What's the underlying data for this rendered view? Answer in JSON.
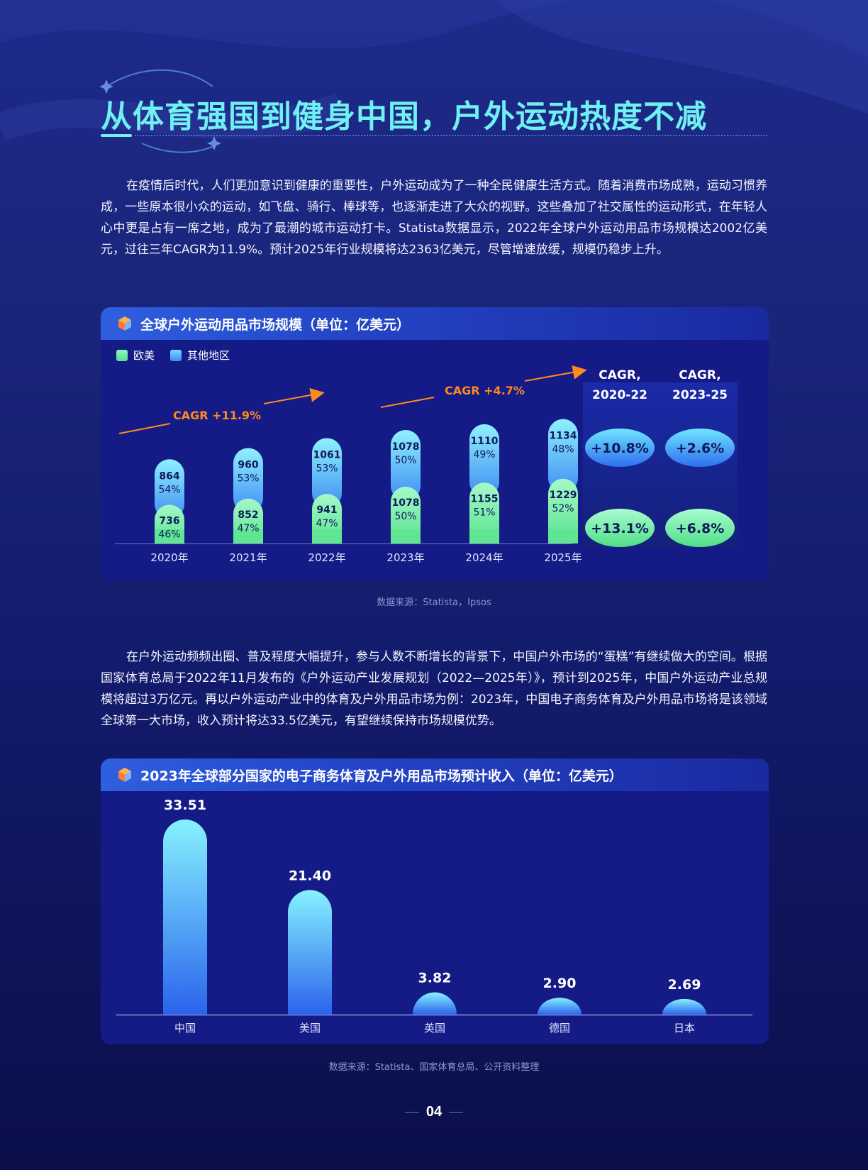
{
  "header": {
    "title": "从体育强国到健身中国，户外运动热度不减"
  },
  "paragraphs": {
    "p1": "在疫情后时代，人们更加意识到健康的重要性，户外运动成为了一种全民健康生活方式。随着消费市场成熟，运动习惯养成，一些原本很小众的运动，如飞盘、骑行、棒球等，也逐渐走进了大众的视野。这些叠加了社交属性的运动形式，在年轻人心中更是占有一席之地，成为了最潮的城市运动打卡。Statista数据显示，2022年全球户外运动用品市场规模达2002亿美元，过往三年CAGR为11.9%。预计2025年行业规模将达2363亿美元，尽管增速放缓，规模仍稳步上升。",
    "p2": "在户外运动频频出圈、普及程度大幅提升，参与人数不断增长的背景下，中国户外市场的“蛋糕”有继续做大的空间。根据国家体育总局于2022年11月发布的《户外运动产业发展规划（2022—2025年）》，预计到2025年，中国户外运动产业总规模将超过3万亿元。再以户外运动产业中的体育及户外用品市场为例：2023年，中国电子商务体育及户外用品市场将是该领域全球第一大市场，收入预计将达33.5亿美元，有望继续保持市场规模优势。"
  },
  "chart_data": [
    {
      "type": "bar",
      "title": "全球户外运动用品市场规模（单位：亿美元）",
      "stacked": true,
      "categories": [
        "2020年",
        "2021年",
        "2022年",
        "2023年",
        "2024年",
        "2025年"
      ],
      "series": [
        {
          "name": "欧美",
          "values": [
            736,
            852,
            941,
            1078,
            1155,
            1229
          ],
          "shares": [
            "46%",
            "47%",
            "47%",
            "50%",
            "51%",
            "52%"
          ],
          "color": "#6ef0a0"
        },
        {
          "name": "其他地区",
          "values": [
            864,
            960,
            1061,
            1078,
            1110,
            1134
          ],
          "shares": [
            "54%",
            "53%",
            "53%",
            "50%",
            "49%",
            "48%"
          ],
          "color": "#4aa8ff"
        }
      ],
      "annotations": [
        "CAGR +11.9%",
        "CAGR +4.7%"
      ],
      "cagr_table": {
        "headers": [
          [
            "CAGR,",
            "2020-22"
          ],
          [
            "CAGR,",
            "2023-25"
          ]
        ],
        "rows": [
          {
            "series": "其他地区",
            "values": [
              "+10.8%",
              "+2.6%"
            ]
          },
          {
            "series": "欧美",
            "values": [
              "+13.1%",
              "+6.8%"
            ]
          }
        ]
      },
      "source": "数据来源：Statista，Ipsos"
    },
    {
      "type": "bar",
      "title": "2023年全球部分国家的电子商务体育及户外用品市场预计收入（单位：亿美元）",
      "categories": [
        "中国",
        "美国",
        "英国",
        "德国",
        "日本"
      ],
      "values": [
        33.51,
        21.4,
        3.82,
        2.9,
        2.69
      ],
      "value_labels": [
        "33.51",
        "21.40",
        "3.82",
        "2.90",
        "2.69"
      ],
      "ylim": [
        0,
        33.51
      ],
      "source": "数据来源：Statista、国家体育总局、公开资料整理"
    }
  ],
  "footer": {
    "page_number": "04"
  },
  "colors": {
    "title": "#6ff0f2",
    "green": "#6ef0a0",
    "blue": "#4aa8ff",
    "orange": "#ff8a1e",
    "panel": "#151b86"
  }
}
